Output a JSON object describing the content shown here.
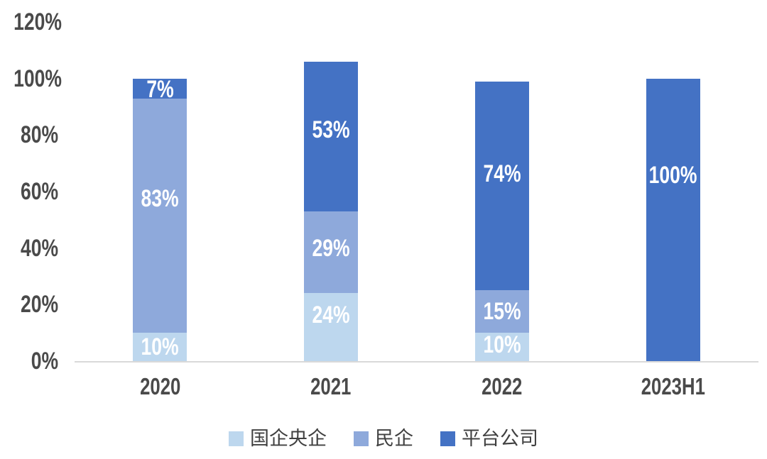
{
  "chart_data": {
    "type": "bar",
    "stacked": true,
    "title": "",
    "categories": [
      "2020",
      "2021",
      "2022",
      "2023H1"
    ],
    "series": [
      {
        "name": "国企央企",
        "color": "#bdd7ee",
        "values": [
          10,
          24,
          10,
          0
        ],
        "labels": [
          "10%",
          "24%",
          "10%",
          ""
        ],
        "label_at": [
          5,
          16.25,
          5.75,
          null
        ]
      },
      {
        "name": "民企",
        "color": "#8ea9db",
        "values": [
          83,
          29,
          15,
          0
        ],
        "labels": [
          "83%",
          "29%",
          "15%",
          ""
        ],
        "label_at": [
          57.5,
          40,
          17.5,
          null
        ]
      },
      {
        "name": "平台公司",
        "color": "#4472c4",
        "values": [
          7,
          53,
          74,
          100
        ],
        "labels": [
          "7%",
          "53%",
          "74%",
          "100%"
        ],
        "label_at": [
          96.25,
          81.75,
          66.25,
          65.75
        ]
      }
    ],
    "y_axis": {
      "min": 0,
      "max": 120,
      "tick_values": [
        0,
        20,
        40,
        60,
        80,
        100,
        120
      ],
      "ticks": [
        "0%",
        "20%",
        "40%",
        "60%",
        "80%",
        "100%",
        "120%"
      ]
    },
    "grid": false,
    "legend_position": "bottom",
    "colors": {
      "axis_line": "#d9d9d9",
      "tick_text": "#4a4a4a",
      "bar_label_text": "#ffffff",
      "category_text": "#4a4a4a",
      "legend_text": "#404040"
    }
  }
}
